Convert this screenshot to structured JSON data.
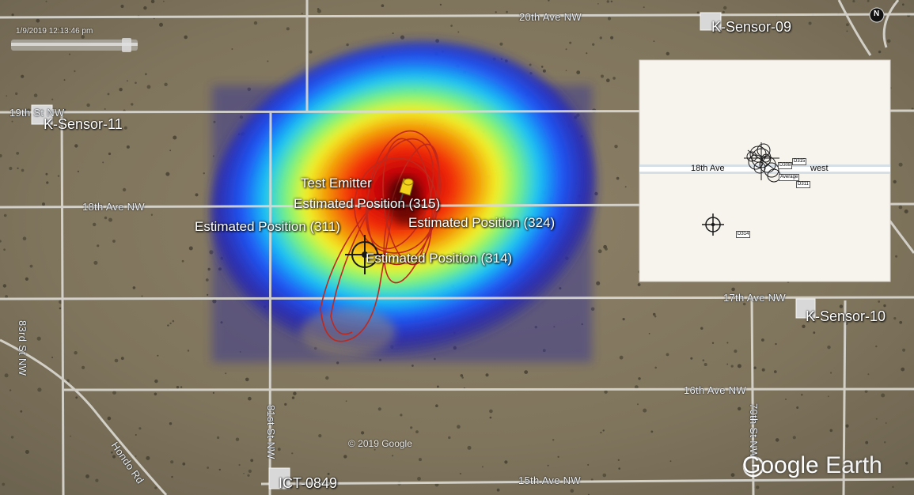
{
  "timestamp": "1/9/2019 12:13:46 pm",
  "compass": "N",
  "roads": {
    "ave_20": "20th Ave NW",
    "ave_19": "19th St NW",
    "ave_18": "18th Ave NW",
    "ave_17": "17th Ave NW",
    "ave_16": "16th Ave NW",
    "ave_15": "15th Ave NW",
    "st_83": "83rd St NW",
    "st_81": "81st St NW",
    "st_70": "70th St NW",
    "hondo": "Hondo Rd"
  },
  "sensors": {
    "s09": "K-Sensor-09",
    "s11": "K-Sensor-11",
    "s10": "K-Sensor-10",
    "ict": "ICT-0849"
  },
  "markers": {
    "emitter": "Test Emitter",
    "p315": "Estimated Position (315)",
    "p311": "Estimated Position (311)",
    "p324": "Estimated Position (324)",
    "p314": "Estimated Position (314)"
  },
  "inset": {
    "road": "18th Ave",
    "road_tail": "west",
    "tag_avg": "Average",
    "tag_308": "D308",
    "tag_311": "D311",
    "tag_315": "D315",
    "tag_314": "D314"
  },
  "copyright": "© 2019 Google",
  "brand": {
    "google": "Google",
    "earth": "Earth"
  },
  "colors": {
    "terrain": "#857a62",
    "road": "#dcdad4",
    "track": "#c0281c",
    "pin": "#f2d21a",
    "inset_bg": "#f7f4ee"
  }
}
